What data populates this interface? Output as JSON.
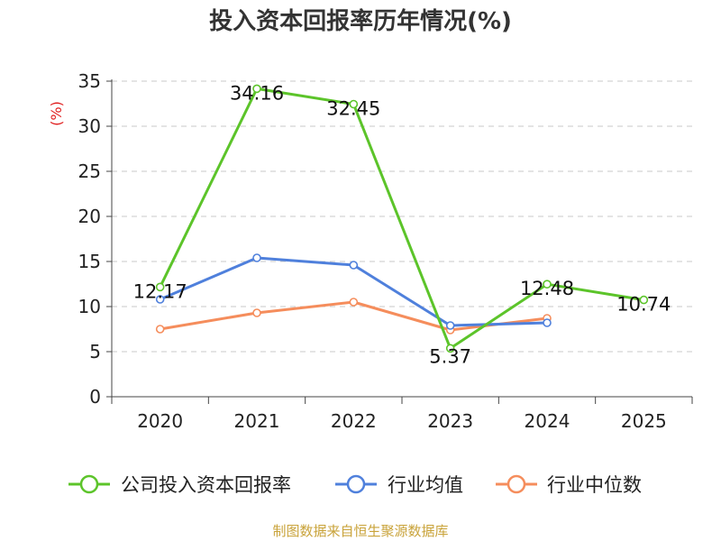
{
  "chart_data": {
    "type": "line",
    "title": "投入资本回报率历年情况(%)",
    "ylabel": "(%)",
    "categories": [
      "2020",
      "2021",
      "2022",
      "2023",
      "2024",
      "2025"
    ],
    "ylim": [
      0,
      35
    ],
    "yticks": [
      "0",
      "5",
      "10",
      "15",
      "20",
      "25",
      "30",
      "35"
    ],
    "grid": true,
    "legend_position": "bottom",
    "series": [
      {
        "name": "公司投入资本回报率",
        "color": "#5cc42a",
        "values": [
          12.17,
          34.16,
          32.45,
          5.37,
          12.48,
          10.74
        ],
        "labels": [
          "12.17",
          "34.16",
          "32.45",
          "5.37",
          "12.48",
          "10.74"
        ]
      },
      {
        "name": "行业均值",
        "color": "#4f80dc",
        "values": [
          10.8,
          15.4,
          14.6,
          7.9,
          8.2,
          null
        ]
      },
      {
        "name": "行业中位数",
        "color": "#f58d5c",
        "values": [
          7.5,
          9.3,
          10.5,
          7.4,
          8.7,
          null
        ]
      }
    ],
    "source": "制图数据来自恒生聚源数据库"
  }
}
